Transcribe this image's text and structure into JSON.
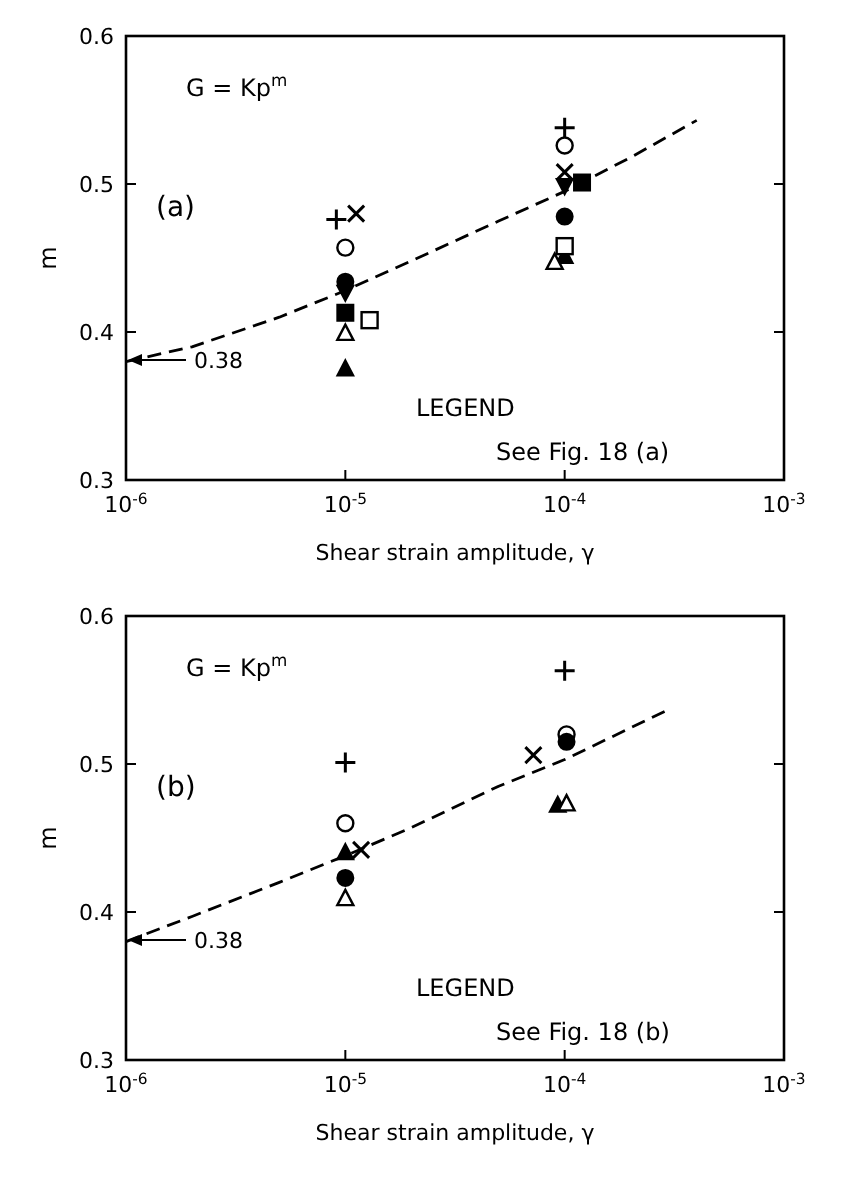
{
  "chart_data": [
    {
      "type": "scatter",
      "xlabel": "Shear strain amplitude, γ",
      "ylabel": "m",
      "log": "x",
      "grid": false,
      "xlim": [
        1e-06,
        0.001
      ],
      "xticks": [
        {
          "value": 1e-06,
          "label": "10$^{-6}$"
        },
        {
          "value": 1e-05,
          "label": "10$^{-5}$"
        },
        {
          "value": 0.0001,
          "label": "10$^{-4}$"
        },
        {
          "value": 0.001,
          "label": "10$^{-3}$"
        }
      ],
      "ylim": [
        0.3,
        0.6
      ],
      "yticks": [
        0.3,
        {
          "value": 0.4,
          "label": "0.4"
        },
        {
          "value": 0.5,
          "label": "0.5"
        },
        {
          "value": 0.6,
          "label": "0.6"
        }
      ],
      "annotations": [
        "G = Kp$^{m}$",
        "(a)",
        "LEGEND",
        "See Fig. 18 (a)",
        "0.38"
      ],
      "series": [
        {
          "color": "#000000",
          "marker": "plus",
          "x": [
            9.1e-06,
            0.0001
          ],
          "values": [
            0.476,
            0.538
          ]
        },
        {
          "color": "#000000",
          "marker": "cross",
          "x": [
            1.12e-05,
            0.0001
          ],
          "values": [
            0.48,
            0.508
          ]
        },
        {
          "color": "#000000",
          "marker": "circle-open",
          "x": [
            1e-05,
            0.0001
          ],
          "values": [
            0.457,
            0.526
          ]
        },
        {
          "color": "#000000",
          "marker": "circle",
          "x": [
            1e-05,
            0.0001
          ],
          "values": [
            0.434,
            0.478
          ]
        },
        {
          "color": "#000000",
          "marker": "triangle-down",
          "x": [
            1e-05,
            0.0001
          ],
          "values": [
            0.427,
            0.499
          ]
        },
        {
          "color": "#000000",
          "marker": "square",
          "x": [
            1e-05,
            0.00012
          ],
          "values": [
            0.413,
            0.501
          ]
        },
        {
          "color": "#000000",
          "marker": "square-open",
          "x": [
            1.29e-05,
            0.0001
          ],
          "values": [
            0.408,
            0.458
          ]
        },
        {
          "color": "#000000",
          "marker": "triangle-open",
          "x": [
            1e-05,
            9e-05
          ],
          "values": [
            0.399,
            0.447
          ]
        },
        {
          "color": "#000000",
          "marker": "triangle",
          "x": [
            1e-05,
            0.0001
          ],
          "values": [
            0.375,
            0.451
          ]
        },
        {
          "type": "line",
          "color": "#000000",
          "marker": "none",
          "line_style": "dashed",
          "x": [
            1e-06,
            2e-06,
            5e-06,
            1e-05,
            2e-05,
            5e-05,
            0.0001,
            0.0002,
            0.0004
          ],
          "values": [
            0.38,
            0.39,
            0.41,
            0.428,
            0.448,
            0.475,
            0.495,
            0.518,
            0.543
          ]
        }
      ]
    },
    {
      "type": "scatter",
      "xlabel": "Shear strain amplitude, γ",
      "ylabel": "m",
      "log": "x",
      "grid": false,
      "xlim": [
        1e-06,
        0.001
      ],
      "xticks": [
        {
          "value": 1e-06,
          "label": "10$^{-6}$"
        },
        {
          "value": 1e-05,
          "label": "10$^{-5}$"
        },
        {
          "value": 0.0001,
          "label": "10$^{-4}$"
        },
        {
          "value": 0.001,
          "label": "10$^{-3}$"
        }
      ],
      "ylim": [
        0.3,
        0.6
      ],
      "yticks": [
        0.3,
        {
          "value": 0.4,
          "label": "0.4"
        },
        {
          "value": 0.5,
          "label": "0.5"
        },
        {
          "value": 0.6,
          "label": "0.6"
        }
      ],
      "annotations": [
        "G = Kp$^{m}$",
        "(b)",
        "LEGEND",
        "See Fig. 18 (b)",
        "0.38"
      ],
      "series": [
        {
          "color": "#000000",
          "marker": "plus",
          "x": [
            1e-05,
            0.0001
          ],
          "values": [
            0.501,
            0.563
          ]
        },
        {
          "color": "#000000",
          "marker": "circle-open",
          "x": [
            1e-05,
            0.000102
          ],
          "values": [
            0.46,
            0.52
          ]
        },
        {
          "color": "#000000",
          "marker": "triangle",
          "x": [
            1e-05,
            9.3e-05
          ],
          "values": [
            0.44,
            0.472
          ]
        },
        {
          "color": "#000000",
          "marker": "cross",
          "x": [
            1.18e-05,
            7.2e-05
          ],
          "values": [
            0.442,
            0.506
          ]
        },
        {
          "color": "#000000",
          "marker": "circle",
          "x": [
            1e-05,
            0.000102
          ],
          "values": [
            0.423,
            0.515
          ]
        },
        {
          "color": "#000000",
          "marker": "triangle-open",
          "x": [
            1e-05,
            0.000102
          ],
          "values": [
            0.409,
            0.473
          ]
        },
        {
          "type": "line",
          "color": "#000000",
          "marker": "none",
          "line_style": "dashed",
          "x": [
            1e-06,
            2e-06,
            5e-06,
            1e-05,
            2e-05,
            5e-05,
            0.0001,
            0.0003
          ],
          "values": [
            0.38,
            0.397,
            0.42,
            0.438,
            0.457,
            0.485,
            0.503,
            0.537
          ]
        }
      ]
    }
  ]
}
